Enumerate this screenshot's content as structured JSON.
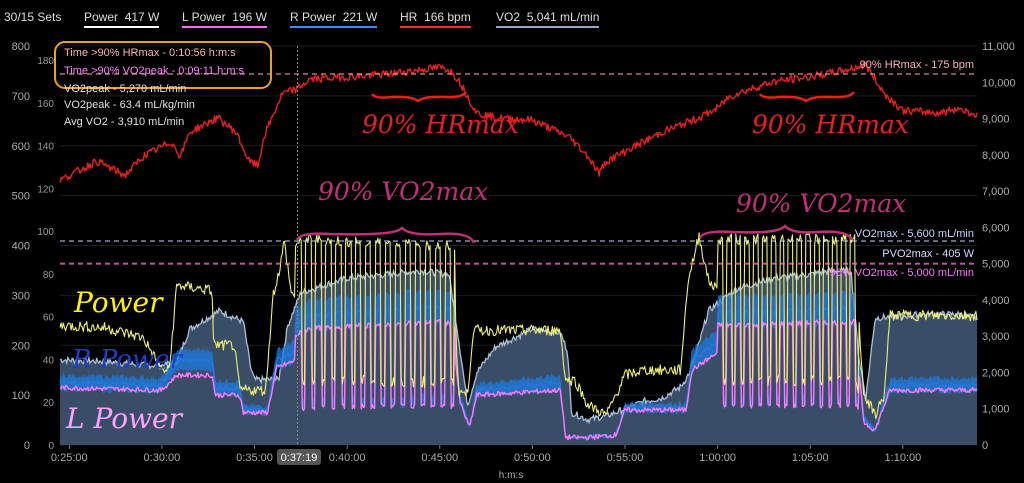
{
  "legend": {
    "sets": "30/15 Sets",
    "items": [
      {
        "label": "Power",
        "value": "417 W",
        "color": "#ffffff"
      },
      {
        "label": "L Power",
        "value": "196 W",
        "color": "#ff66ff"
      },
      {
        "label": "R Power",
        "value": "221 W",
        "color": "#3b8cff"
      },
      {
        "label": "HR",
        "value": "166 bpm",
        "color": "#ff2a2a"
      },
      {
        "label": "VO2",
        "value": "5,041 mL/min",
        "color": "#8fa8c8"
      }
    ]
  },
  "summary": [
    "Time >90% HRmax - 0:10:56 h:m:s",
    "Time >90% VO2peak - 0:09:11 h:m:s",
    "VO2peak - 5,270 mL/min",
    "VO2peak - 63.4 mL/kg/min",
    "Avg VO2 - 3,910 mL/min"
  ],
  "ref_lines": {
    "hrmax90": "90% HRmax - 175 bpm",
    "vo2max": "VO2max - 5,600 mL/min",
    "pvo2max": "PVO2max - 405 W",
    "vo2max90": "90% VO2max - 5,000 mL/min"
  },
  "handwriting": {
    "hr1": "90% HRmax",
    "hr2": "90% HRmax",
    "vo1": "90% VO2max",
    "vo2": "90% VO2max",
    "power": "Power",
    "rpower": "R Power",
    "lpower": "L Power"
  },
  "cursor_label": "0:37:19",
  "colors": {
    "power": "#f0f070",
    "lpower": "#ff77ff",
    "rpower": "#1f7be0",
    "hr": "#e8201e",
    "vo2_fill": "#3a4d66",
    "vo2_edge": "#aac0d8",
    "ann_red": "#e8201e",
    "ann_magenta": "#c0307a",
    "ann_yellow": "#fff200",
    "ann_blue": "#1a3fd0",
    "ann_pink": "#ff9fff",
    "highlight": "#f0a020"
  },
  "chart_data": {
    "type": "line",
    "xlabel": "h:m:s",
    "x_ticks": [
      "0:25:00",
      "0:30:00",
      "0:35:00",
      "0:40:00",
      "0:45:00",
      "0:50:00",
      "0:55:00",
      "1:00:00",
      "1:05:00",
      "1:10:00"
    ],
    "xlim_min": [
      24.5,
      74.0
    ],
    "y_axes": {
      "power_w": {
        "ticks": [
          0,
          100,
          200,
          300,
          400,
          500,
          600,
          700,
          800
        ],
        "ylim": [
          0,
          800
        ]
      },
      "pct": {
        "ticks": [
          0,
          20,
          40,
          60,
          80,
          100,
          120,
          140,
          160,
          180
        ],
        "ylim": [
          0,
          180
        ]
      },
      "vo2_ml_min": {
        "ticks": [
          "0",
          "1,000",
          "2,000",
          "3,000",
          "4,000",
          "5,000",
          "6,000",
          "7,000",
          "8,000",
          "9,000",
          "10,000",
          "11,000"
        ],
        "ylim": [
          0,
          11000
        ]
      }
    },
    "series": [
      {
        "name": "HR",
        "unit": "bpm",
        "points": [
          [
            24.5,
            130
          ],
          [
            26.5,
            138
          ],
          [
            28,
            132
          ],
          [
            29,
            140
          ],
          [
            30.5,
            146
          ],
          [
            31,
            140
          ],
          [
            31.5,
            150
          ],
          [
            33,
            156
          ],
          [
            34,
            150
          ],
          [
            34.7,
            138
          ],
          [
            35.2,
            136
          ],
          [
            35.5,
            148
          ],
          [
            36.5,
            166
          ],
          [
            37.3,
            168
          ],
          [
            38,
            172
          ],
          [
            40,
            173
          ],
          [
            42,
            174
          ],
          [
            44,
            176
          ],
          [
            45,
            177
          ],
          [
            45.5,
            176
          ],
          [
            46,
            172
          ],
          [
            47,
            158
          ],
          [
            48,
            156
          ],
          [
            50,
            155
          ],
          [
            52,
            148
          ],
          [
            53,
            140
          ],
          [
            53.6,
            133
          ],
          [
            54,
            138
          ],
          [
            55,
            142
          ],
          [
            57,
            150
          ],
          [
            59,
            156
          ],
          [
            60,
            160
          ],
          [
            60.5,
            164
          ],
          [
            61,
            166
          ],
          [
            63,
            171
          ],
          [
            65,
            173
          ],
          [
            67,
            176
          ],
          [
            68,
            178
          ],
          [
            69,
            166
          ],
          [
            70,
            159
          ],
          [
            72,
            158
          ],
          [
            73,
            160
          ],
          [
            74,
            157
          ]
        ]
      },
      {
        "name": "VO2",
        "unit": "mL/min",
        "points": [
          [
            24.5,
            2350
          ],
          [
            27,
            2300
          ],
          [
            29,
            2200
          ],
          [
            30,
            2200
          ],
          [
            30.8,
            2300
          ],
          [
            31.5,
            3200
          ],
          [
            33.1,
            3700
          ],
          [
            34.4,
            3400
          ],
          [
            34.8,
            2100
          ],
          [
            35,
            1800
          ],
          [
            36.3,
            1800
          ],
          [
            36.8,
            3300
          ],
          [
            37.5,
            4200
          ],
          [
            40,
            4600
          ],
          [
            42,
            4700
          ],
          [
            44,
            4800
          ],
          [
            45.5,
            4700
          ],
          [
            46,
            3000
          ],
          [
            46.5,
            1100
          ],
          [
            47,
            2000
          ],
          [
            48,
            2700
          ],
          [
            50,
            3200
          ],
          [
            51.5,
            3100
          ],
          [
            51.9,
            2600
          ],
          [
            52.1,
            900
          ],
          [
            53,
            700
          ],
          [
            54,
            800
          ],
          [
            55,
            1000
          ],
          [
            56,
            1200
          ],
          [
            57,
            1300
          ],
          [
            58,
            1600
          ],
          [
            58.5,
            2000
          ],
          [
            59,
            2800
          ],
          [
            59.5,
            3700
          ],
          [
            61,
            4300
          ],
          [
            63,
            4600
          ],
          [
            65,
            4700
          ],
          [
            66,
            4800
          ],
          [
            67.2,
            4800
          ],
          [
            67.6,
            2500
          ],
          [
            68,
            1300
          ],
          [
            68.5,
            3500
          ],
          [
            71,
            3600
          ],
          [
            73,
            3600
          ],
          [
            74,
            3500
          ]
        ]
      },
      {
        "name": "Power",
        "unit": "W",
        "points": [
          [
            24.5,
            240
          ],
          [
            27,
            235
          ],
          [
            29,
            215
          ],
          [
            30,
            150
          ],
          [
            30.4,
            150
          ],
          [
            30.8,
            320
          ],
          [
            32.7,
            310
          ],
          [
            32.8,
            200
          ],
          [
            33.9,
            200
          ],
          [
            34.2,
            110
          ],
          [
            35.6,
            110
          ],
          [
            36,
            300
          ],
          [
            36.4,
            360
          ],
          [
            36.6,
            410
          ],
          [
            37,
            300
          ],
          [
            38,
            310
          ],
          [
            45,
            300
          ],
          [
            45.8,
            300
          ],
          [
            46,
            110
          ],
          [
            46.5,
            100
          ],
          [
            46.8,
            230
          ],
          [
            51.5,
            230
          ],
          [
            51.8,
            130
          ],
          [
            52.3,
            130
          ],
          [
            53,
            80
          ],
          [
            54,
            60
          ],
          [
            55,
            140
          ],
          [
            56,
            150
          ],
          [
            58,
            150
          ],
          [
            58.4,
            330
          ],
          [
            59,
            420
          ],
          [
            59.5,
            330
          ],
          [
            60,
            310
          ],
          [
            67.5,
            310
          ],
          [
            67.9,
            100
          ],
          [
            68.5,
            60
          ],
          [
            69,
            100
          ],
          [
            69.3,
            260
          ],
          [
            74,
            260
          ]
        ]
      },
      {
        "name": "R Power",
        "unit": "W",
        "points": [
          [
            24.5,
            125
          ],
          [
            30,
            120
          ],
          [
            30.8,
            170
          ],
          [
            32.7,
            170
          ],
          [
            32.9,
            115
          ],
          [
            34.2,
            115
          ],
          [
            34.4,
            70
          ],
          [
            35.7,
            70
          ],
          [
            36.2,
            170
          ],
          [
            38,
            200
          ],
          [
            45,
            215
          ],
          [
            45.8,
            210
          ],
          [
            46.1,
            90
          ],
          [
            46.6,
            40
          ],
          [
            47,
            110
          ],
          [
            51.5,
            125
          ],
          [
            51.8,
            15
          ],
          [
            53,
            15
          ],
          [
            54.5,
            20
          ],
          [
            55,
            75
          ],
          [
            58.3,
            75
          ],
          [
            58.6,
            170
          ],
          [
            60,
            205
          ],
          [
            67.5,
            210
          ],
          [
            67.9,
            50
          ],
          [
            68.5,
            30
          ],
          [
            69.3,
            120
          ],
          [
            74,
            120
          ]
        ]
      },
      {
        "name": "L Power",
        "unit": "W",
        "points": [
          [
            24.5,
            115
          ],
          [
            30,
            110
          ],
          [
            30.8,
            140
          ],
          [
            32.7,
            140
          ],
          [
            32.9,
            100
          ],
          [
            34.2,
            100
          ],
          [
            34.4,
            65
          ],
          [
            35.7,
            65
          ],
          [
            36.2,
            155
          ],
          [
            38,
            180
          ],
          [
            45,
            190
          ],
          [
            45.8,
            185
          ],
          [
            46.1,
            85
          ],
          [
            46.6,
            35
          ],
          [
            47,
            100
          ],
          [
            51.5,
            110
          ],
          [
            51.8,
            15
          ],
          [
            53,
            15
          ],
          [
            54.5,
            20
          ],
          [
            55,
            70
          ],
          [
            58.3,
            70
          ],
          [
            58.6,
            150
          ],
          [
            60,
            185
          ],
          [
            67.5,
            190
          ],
          [
            67.9,
            45
          ],
          [
            68.5,
            30
          ],
          [
            69.3,
            110
          ],
          [
            74,
            110
          ]
        ]
      }
    ],
    "intervals": [
      {
        "start_min": 37.2,
        "end_min": 45.8,
        "count": 16,
        "on_power_w": 420,
        "off_power_w": 110
      },
      {
        "start_min": 60.0,
        "end_min": 67.6,
        "count": 16,
        "on_power_w": 420,
        "off_power_w": 110
      }
    ],
    "reference_values": {
      "hrmax90_bpm": 175,
      "vo2max_ml": 5600,
      "pvo2max_w": 405,
      "vo2max90_ml": 5000
    },
    "cursor_min": 37.32
  }
}
